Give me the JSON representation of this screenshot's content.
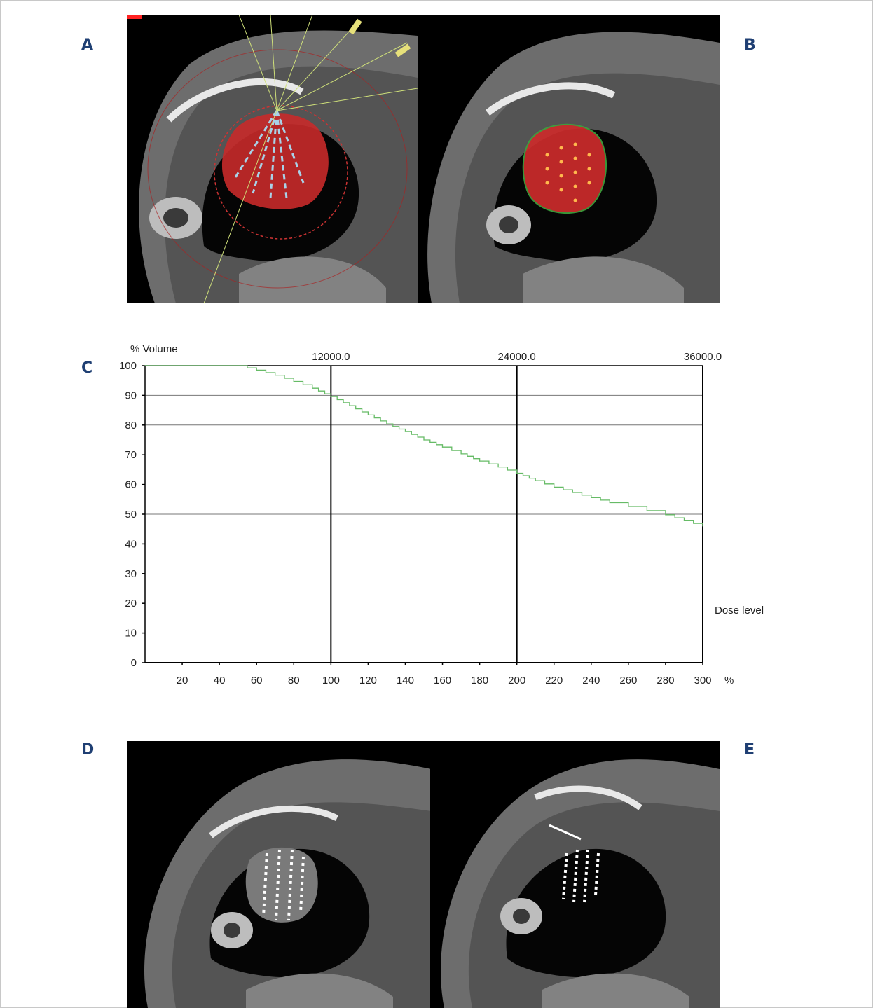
{
  "panels": {
    "a": "A",
    "b": "B",
    "c": "C",
    "d": "D",
    "e": "E"
  },
  "chart_data": {
    "type": "line",
    "ylabel": "% Volume",
    "xlabel": "Dose level",
    "x_unit": "%",
    "xlim": [
      0,
      300
    ],
    "ylim": [
      0,
      100
    ],
    "x_ticks": [
      20,
      40,
      60,
      80,
      100,
      120,
      140,
      160,
      180,
      200,
      220,
      240,
      260,
      280,
      300
    ],
    "y_ticks": [
      0,
      10,
      20,
      30,
      40,
      50,
      60,
      70,
      80,
      90,
      100
    ],
    "top_axis_ticks": [
      {
        "x": 100,
        "label": "12000.0"
      },
      {
        "x": 200,
        "label": "24000.0"
      },
      {
        "x": 300,
        "label": "36000.0"
      }
    ],
    "reference_lines_y": [
      50,
      80,
      90
    ],
    "reference_lines_x": [
      100,
      200
    ],
    "series": [
      {
        "color": "#66bb66",
        "x": [
          0,
          50,
          60,
          70,
          80,
          90,
          100,
          110,
          120,
          130,
          140,
          150,
          160,
          170,
          180,
          190,
          200,
          210,
          220,
          230,
          240,
          250,
          260,
          270,
          280,
          290,
          300
        ],
        "y": [
          100,
          100,
          98.5,
          96.8,
          94.7,
          92.4,
          89.6,
          86.5,
          83.4,
          80.4,
          77.8,
          75.0,
          72.6,
          70.3,
          67.9,
          65.9,
          63.8,
          61.3,
          59.1,
          57.3,
          55.6,
          53.9,
          52.6,
          51.2,
          49.8,
          47.8,
          46.0
        ]
      }
    ]
  }
}
